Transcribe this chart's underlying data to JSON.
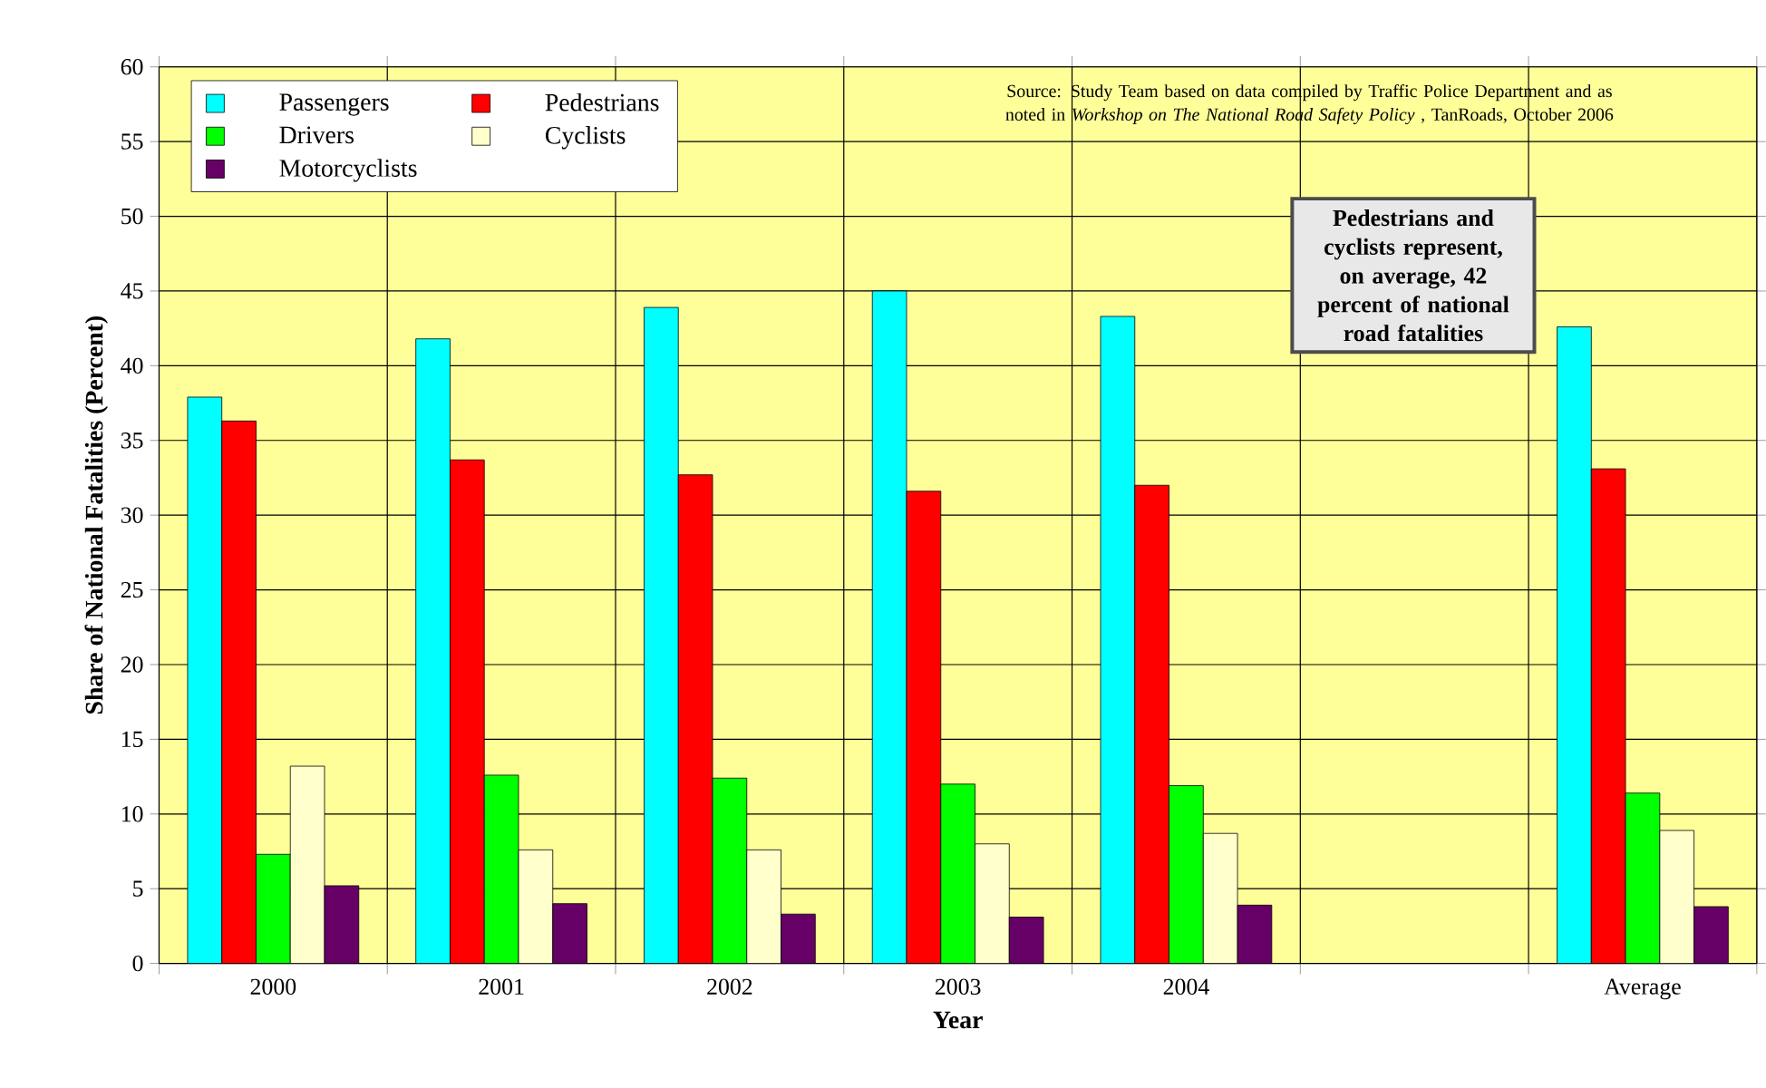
{
  "chart_data": {
    "type": "bar",
    "xlabel": "Year",
    "ylabel": "Share of National Fatalities (Percent)",
    "categories": [
      "2000",
      "2001",
      "2002",
      "2003",
      "2004",
      null,
      "Average"
    ],
    "series": [
      {
        "name": "Passengers",
        "color": "#00ffff",
        "values": [
          37.9,
          41.8,
          43.9,
          45.0,
          43.3,
          null,
          42.6
        ]
      },
      {
        "name": "Pedestrians",
        "color": "#ff0000",
        "values": [
          36.3,
          33.7,
          32.7,
          31.6,
          32.0,
          null,
          33.1
        ]
      },
      {
        "name": "Drivers",
        "color": "#00ff00",
        "values": [
          7.3,
          12.6,
          12.4,
          12.0,
          11.9,
          null,
          11.4
        ]
      },
      {
        "name": "Cyclists",
        "color": "#ffffcc",
        "values": [
          13.2,
          7.6,
          7.6,
          8.0,
          8.7,
          null,
          8.9
        ]
      },
      {
        "name": "Motorcyclists",
        "color": "#660066",
        "values": [
          5.2,
          4.0,
          3.3,
          3.1,
          3.9,
          null,
          3.8
        ]
      }
    ],
    "ylim": [
      0,
      60
    ],
    "yticks": [
      0,
      5,
      10,
      15,
      20,
      25,
      30,
      35,
      40,
      45,
      50,
      55,
      60
    ],
    "grid": true,
    "legend": "top left",
    "annotations": [
      "Source: Study Team based on data compiled by Traffic Police Department and as noted in *Workshop on The National Road Safety Policy* , TanRoads, October 2006",
      "Pedestrians and cyclists represent, on average, 42 percent of national road fatalities"
    ]
  }
}
